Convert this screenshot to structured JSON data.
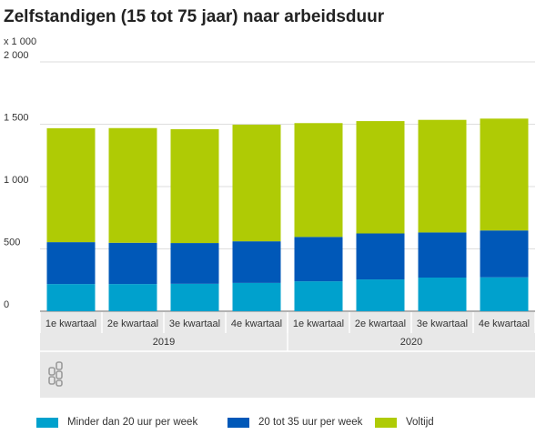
{
  "chart_data": {
    "type": "bar",
    "stacked": true,
    "title": "Zelfstandigen (15 tot 75 jaar) naar arbeidsduur",
    "unit_label": "x 1 000",
    "ylim": [
      0,
      2000
    ],
    "yticks": [
      0,
      500,
      1000,
      1500,
      2000
    ],
    "ytick_labels": [
      "0",
      "500",
      "1 000",
      "1 500",
      "2 000"
    ],
    "grid": true,
    "legend_position": "bottom",
    "categories": [
      "1e kwartaal",
      "2e kwartaal",
      "3e kwartaal",
      "4e kwartaal",
      "1e kwartaal",
      "2e kwartaal",
      "3e kwartaal",
      "4e kwartaal"
    ],
    "groups": [
      {
        "label": "2019",
        "span": 4
      },
      {
        "label": "2020",
        "span": 4
      }
    ],
    "series": [
      {
        "name": "Minder dan 20 uur per week",
        "color": "#00a1cd",
        "values": [
          218,
          218,
          220,
          227,
          240,
          255,
          270,
          272
        ]
      },
      {
        "name": "20 tot 35 uur per week",
        "color": "#0058b8",
        "values": [
          336,
          331,
          327,
          334,
          356,
          369,
          362,
          376
        ]
      },
      {
        "name": "Voltijd",
        "color": "#afcb05",
        "values": [
          914,
          920,
          913,
          935,
          913,
          901,
          903,
          897
        ]
      }
    ]
  }
}
